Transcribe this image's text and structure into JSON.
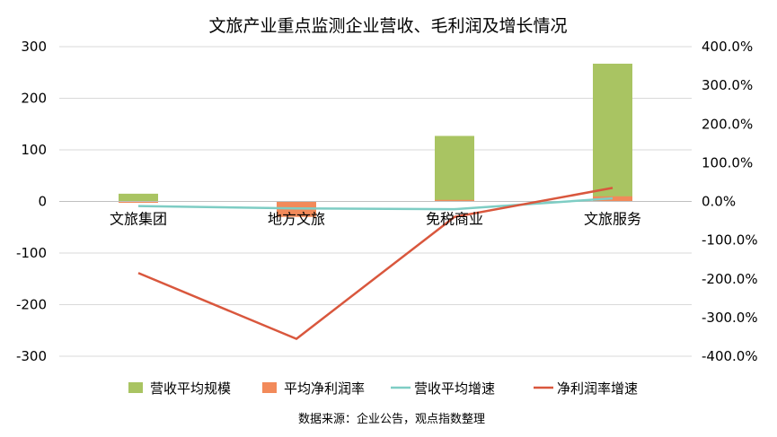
{
  "chart_data": {
    "type": "bar",
    "title": "文旅产业重点监测企业营收、毛利润及增长情况",
    "source": "数据来源：企业公告，观点指数整理",
    "categories": [
      "文旅集团",
      "地方文旅",
      "免税商业",
      "文旅服务"
    ],
    "y_left": {
      "range": [
        -300,
        300
      ],
      "ticks": [
        "300",
        "200",
        "100",
        "0",
        "-100",
        "-200",
        "-300"
      ]
    },
    "y_right": {
      "range": [
        -400,
        400
      ],
      "ticks": [
        "400.0%",
        "300.0%",
        "200.0%",
        "100.0%",
        "0.0%",
        "-100.0%",
        "-200.0%",
        "-300.0%",
        "-400.0%"
      ]
    },
    "series": [
      {
        "name": "营收平均规模",
        "type": "bar",
        "axis": "left",
        "color": "#a9c462",
        "values": [
          15,
          -2,
          127,
          267
        ]
      },
      {
        "name": "平均净利润率",
        "type": "bar",
        "axis": "left",
        "color": "#f28a5a",
        "values": [
          -1,
          -30,
          3,
          10
        ]
      },
      {
        "name": "营收平均增速",
        "type": "line",
        "axis": "right",
        "color": "#7ecdc4",
        "values": [
          -12,
          -18,
          -20,
          8
        ]
      },
      {
        "name": "净利润率增速",
        "type": "line",
        "axis": "right",
        "color": "#d9573d",
        "values": [
          -185,
          -355,
          -40,
          35
        ]
      }
    ],
    "grid": true,
    "legend": "bottom"
  }
}
